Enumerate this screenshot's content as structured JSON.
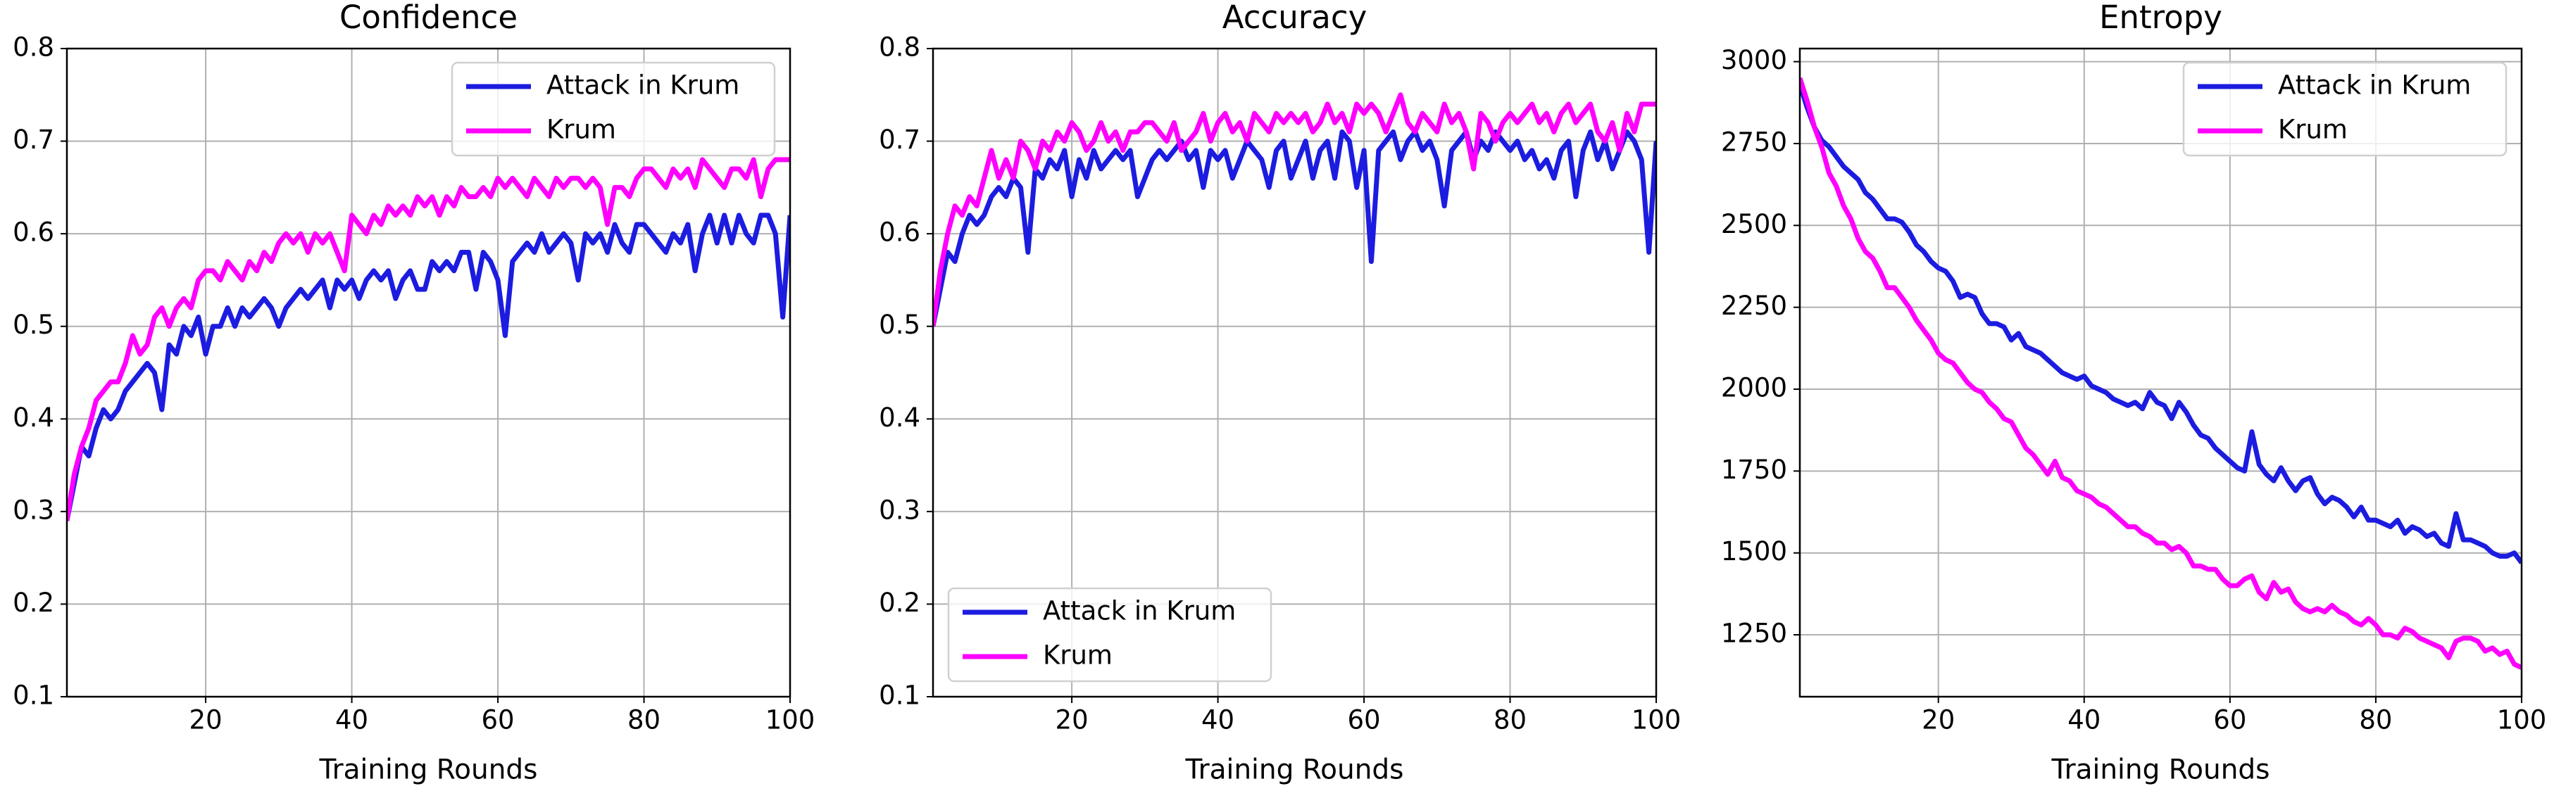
{
  "chart_data": [
    {
      "type": "line",
      "title": "Confidence",
      "xlabel": "Training Rounds",
      "x": [
        1,
        2,
        3,
        4,
        5,
        6,
        7,
        8,
        9,
        10,
        11,
        12,
        13,
        14,
        15,
        16,
        17,
        18,
        19,
        20,
        21,
        22,
        23,
        24,
        25,
        26,
        27,
        28,
        29,
        30,
        31,
        32,
        33,
        34,
        35,
        36,
        37,
        38,
        39,
        40,
        41,
        42,
        43,
        44,
        45,
        46,
        47,
        48,
        49,
        50,
        51,
        52,
        53,
        54,
        55,
        56,
        57,
        58,
        59,
        60,
        61,
        62,
        63,
        64,
        65,
        66,
        67,
        68,
        69,
        70,
        71,
        72,
        73,
        74,
        75,
        76,
        77,
        78,
        79,
        80,
        81,
        82,
        83,
        84,
        85,
        86,
        87,
        88,
        89,
        90,
        91,
        92,
        93,
        94,
        95,
        96,
        97,
        98,
        99,
        100
      ],
      "xlim": [
        1,
        100
      ],
      "xticks": [
        20,
        40,
        60,
        80,
        100
      ],
      "ylim": [
        0.1,
        0.8
      ],
      "yticks": [
        0.1,
        0.2,
        0.3,
        0.4,
        0.5,
        0.6,
        0.7,
        0.8
      ],
      "grid": true,
      "legend": "upper right",
      "series": [
        {
          "name": "Attack in Krum",
          "color": "#1c1ce0",
          "values": [
            0.29,
            0.33,
            0.37,
            0.36,
            0.39,
            0.41,
            0.4,
            0.41,
            0.43,
            0.44,
            0.45,
            0.46,
            0.45,
            0.41,
            0.48,
            0.47,
            0.5,
            0.49,
            0.51,
            0.47,
            0.5,
            0.5,
            0.52,
            0.5,
            0.52,
            0.51,
            0.52,
            0.53,
            0.52,
            0.5,
            0.52,
            0.53,
            0.54,
            0.53,
            0.54,
            0.55,
            0.52,
            0.55,
            0.54,
            0.55,
            0.53,
            0.55,
            0.56,
            0.55,
            0.56,
            0.53,
            0.55,
            0.56,
            0.54,
            0.54,
            0.57,
            0.56,
            0.57,
            0.56,
            0.58,
            0.58,
            0.54,
            0.58,
            0.57,
            0.55,
            0.49,
            0.57,
            0.58,
            0.59,
            0.58,
            0.6,
            0.58,
            0.59,
            0.6,
            0.59,
            0.55,
            0.6,
            0.59,
            0.6,
            0.58,
            0.61,
            0.59,
            0.58,
            0.61,
            0.61,
            0.6,
            0.59,
            0.58,
            0.6,
            0.59,
            0.61,
            0.56,
            0.6,
            0.62,
            0.59,
            0.62,
            0.59,
            0.62,
            0.6,
            0.59,
            0.62,
            0.62,
            0.6,
            0.51,
            0.62
          ]
        },
        {
          "name": "Krum",
          "color": "#ff00ff",
          "values": [
            0.29,
            0.34,
            0.37,
            0.39,
            0.42,
            0.43,
            0.44,
            0.44,
            0.46,
            0.49,
            0.47,
            0.48,
            0.51,
            0.52,
            0.5,
            0.52,
            0.53,
            0.52,
            0.55,
            0.56,
            0.56,
            0.55,
            0.57,
            0.56,
            0.55,
            0.57,
            0.56,
            0.58,
            0.57,
            0.59,
            0.6,
            0.59,
            0.6,
            0.58,
            0.6,
            0.59,
            0.6,
            0.58,
            0.56,
            0.62,
            0.61,
            0.6,
            0.62,
            0.61,
            0.63,
            0.62,
            0.63,
            0.62,
            0.64,
            0.63,
            0.64,
            0.62,
            0.64,
            0.63,
            0.65,
            0.64,
            0.64,
            0.65,
            0.64,
            0.66,
            0.65,
            0.66,
            0.65,
            0.64,
            0.66,
            0.65,
            0.64,
            0.66,
            0.65,
            0.66,
            0.66,
            0.65,
            0.66,
            0.65,
            0.61,
            0.65,
            0.65,
            0.64,
            0.66,
            0.67,
            0.67,
            0.66,
            0.65,
            0.67,
            0.66,
            0.67,
            0.65,
            0.68,
            0.67,
            0.66,
            0.65,
            0.67,
            0.67,
            0.66,
            0.68,
            0.64,
            0.67,
            0.68,
            0.68,
            0.68
          ]
        }
      ]
    },
    {
      "type": "line",
      "title": "Accuracy",
      "xlabel": "Training Rounds",
      "x": [
        1,
        2,
        3,
        4,
        5,
        6,
        7,
        8,
        9,
        10,
        11,
        12,
        13,
        14,
        15,
        16,
        17,
        18,
        19,
        20,
        21,
        22,
        23,
        24,
        25,
        26,
        27,
        28,
        29,
        30,
        31,
        32,
        33,
        34,
        35,
        36,
        37,
        38,
        39,
        40,
        41,
        42,
        43,
        44,
        45,
        46,
        47,
        48,
        49,
        50,
        51,
        52,
        53,
        54,
        55,
        56,
        57,
        58,
        59,
        60,
        61,
        62,
        63,
        64,
        65,
        66,
        67,
        68,
        69,
        70,
        71,
        72,
        73,
        74,
        75,
        76,
        77,
        78,
        79,
        80,
        81,
        82,
        83,
        84,
        85,
        86,
        87,
        88,
        89,
        90,
        91,
        92,
        93,
        94,
        95,
        96,
        97,
        98,
        99,
        100
      ],
      "xlim": [
        1,
        100
      ],
      "xticks": [
        20,
        40,
        60,
        80,
        100
      ],
      "ylim": [
        0.1,
        0.8
      ],
      "yticks": [
        0.1,
        0.2,
        0.3,
        0.4,
        0.5,
        0.6,
        0.7,
        0.8
      ],
      "grid": true,
      "legend": "lower left",
      "series": [
        {
          "name": "Attack in Krum",
          "color": "#1c1ce0",
          "values": [
            0.5,
            0.54,
            0.58,
            0.57,
            0.6,
            0.62,
            0.61,
            0.62,
            0.64,
            0.65,
            0.64,
            0.66,
            0.65,
            0.58,
            0.67,
            0.66,
            0.68,
            0.67,
            0.69,
            0.64,
            0.68,
            0.66,
            0.69,
            0.67,
            0.68,
            0.69,
            0.68,
            0.69,
            0.64,
            0.66,
            0.68,
            0.69,
            0.68,
            0.69,
            0.7,
            0.68,
            0.69,
            0.65,
            0.69,
            0.68,
            0.69,
            0.66,
            0.68,
            0.7,
            0.69,
            0.68,
            0.65,
            0.69,
            0.7,
            0.66,
            0.68,
            0.7,
            0.66,
            0.69,
            0.7,
            0.66,
            0.71,
            0.7,
            0.65,
            0.69,
            0.57,
            0.69,
            0.7,
            0.71,
            0.68,
            0.7,
            0.71,
            0.69,
            0.7,
            0.68,
            0.63,
            0.69,
            0.7,
            0.71,
            0.68,
            0.7,
            0.69,
            0.71,
            0.7,
            0.69,
            0.7,
            0.68,
            0.69,
            0.67,
            0.68,
            0.66,
            0.69,
            0.7,
            0.64,
            0.69,
            0.71,
            0.68,
            0.7,
            0.67,
            0.69,
            0.71,
            0.7,
            0.68,
            0.58,
            0.7
          ]
        },
        {
          "name": "Krum",
          "color": "#ff00ff",
          "values": [
            0.5,
            0.56,
            0.6,
            0.63,
            0.62,
            0.64,
            0.63,
            0.66,
            0.69,
            0.66,
            0.68,
            0.66,
            0.7,
            0.69,
            0.67,
            0.7,
            0.69,
            0.71,
            0.7,
            0.72,
            0.71,
            0.69,
            0.7,
            0.72,
            0.7,
            0.71,
            0.69,
            0.71,
            0.71,
            0.72,
            0.72,
            0.71,
            0.7,
            0.72,
            0.69,
            0.7,
            0.71,
            0.73,
            0.7,
            0.72,
            0.73,
            0.71,
            0.72,
            0.7,
            0.73,
            0.72,
            0.71,
            0.73,
            0.72,
            0.73,
            0.72,
            0.73,
            0.71,
            0.72,
            0.74,
            0.72,
            0.73,
            0.71,
            0.74,
            0.73,
            0.74,
            0.73,
            0.71,
            0.73,
            0.75,
            0.72,
            0.71,
            0.73,
            0.72,
            0.71,
            0.74,
            0.72,
            0.73,
            0.71,
            0.67,
            0.73,
            0.72,
            0.7,
            0.72,
            0.73,
            0.72,
            0.73,
            0.74,
            0.72,
            0.73,
            0.71,
            0.73,
            0.74,
            0.72,
            0.73,
            0.74,
            0.71,
            0.7,
            0.72,
            0.69,
            0.73,
            0.71,
            0.74,
            0.74,
            0.74
          ]
        }
      ]
    },
    {
      "type": "line",
      "title": "Entropy",
      "xlabel": "Training Rounds",
      "x": [
        1,
        2,
        3,
        4,
        5,
        6,
        7,
        8,
        9,
        10,
        11,
        12,
        13,
        14,
        15,
        16,
        17,
        18,
        19,
        20,
        21,
        22,
        23,
        24,
        25,
        26,
        27,
        28,
        29,
        30,
        31,
        32,
        33,
        34,
        35,
        36,
        37,
        38,
        39,
        40,
        41,
        42,
        43,
        44,
        45,
        46,
        47,
        48,
        49,
        50,
        51,
        52,
        53,
        54,
        55,
        56,
        57,
        58,
        59,
        60,
        61,
        62,
        63,
        64,
        65,
        66,
        67,
        68,
        69,
        70,
        71,
        72,
        73,
        74,
        75,
        76,
        77,
        78,
        79,
        80,
        81,
        82,
        83,
        84,
        85,
        86,
        87,
        88,
        89,
        90,
        91,
        92,
        93,
        94,
        95,
        96,
        97,
        98,
        99,
        100
      ],
      "xlim": [
        1,
        100
      ],
      "xticks": [
        20,
        40,
        60,
        80,
        100
      ],
      "ylim": [
        1061,
        3040
      ],
      "yticks": [
        1250,
        1500,
        1750,
        2000,
        2250,
        2500,
        2750,
        3000
      ],
      "grid": true,
      "legend": "upper right",
      "series": [
        {
          "name": "Attack in Krum",
          "color": "#1c1ce0",
          "values": [
            2930,
            2860,
            2800,
            2760,
            2740,
            2710,
            2680,
            2660,
            2640,
            2600,
            2580,
            2550,
            2520,
            2520,
            2510,
            2480,
            2440,
            2420,
            2390,
            2370,
            2360,
            2330,
            2280,
            2290,
            2280,
            2230,
            2200,
            2200,
            2190,
            2150,
            2170,
            2130,
            2120,
            2110,
            2090,
            2070,
            2050,
            2040,
            2030,
            2040,
            2010,
            2000,
            1990,
            1970,
            1960,
            1950,
            1960,
            1940,
            1990,
            1960,
            1950,
            1910,
            1960,
            1930,
            1890,
            1860,
            1850,
            1820,
            1800,
            1780,
            1760,
            1750,
            1870,
            1770,
            1740,
            1720,
            1760,
            1720,
            1690,
            1720,
            1730,
            1680,
            1650,
            1670,
            1660,
            1640,
            1610,
            1640,
            1600,
            1600,
            1590,
            1580,
            1600,
            1560,
            1580,
            1570,
            1550,
            1560,
            1530,
            1520,
            1620,
            1540,
            1540,
            1530,
            1520,
            1500,
            1490,
            1490,
            1500,
            1470
          ]
        },
        {
          "name": "Krum",
          "color": "#ff00ff",
          "values": [
            2950,
            2880,
            2800,
            2740,
            2660,
            2620,
            2560,
            2520,
            2460,
            2420,
            2400,
            2360,
            2310,
            2310,
            2280,
            2250,
            2210,
            2180,
            2150,
            2110,
            2090,
            2080,
            2050,
            2020,
            2000,
            1990,
            1960,
            1940,
            1910,
            1900,
            1860,
            1820,
            1800,
            1770,
            1740,
            1780,
            1730,
            1720,
            1690,
            1680,
            1670,
            1650,
            1640,
            1620,
            1600,
            1580,
            1580,
            1560,
            1550,
            1530,
            1530,
            1510,
            1520,
            1500,
            1460,
            1460,
            1450,
            1450,
            1420,
            1400,
            1400,
            1420,
            1430,
            1380,
            1360,
            1410,
            1380,
            1390,
            1350,
            1330,
            1320,
            1330,
            1320,
            1340,
            1320,
            1310,
            1290,
            1280,
            1300,
            1280,
            1250,
            1250,
            1240,
            1270,
            1260,
            1240,
            1230,
            1220,
            1210,
            1180,
            1230,
            1240,
            1240,
            1230,
            1200,
            1210,
            1190,
            1200,
            1160,
            1150
          ]
        }
      ]
    }
  ]
}
